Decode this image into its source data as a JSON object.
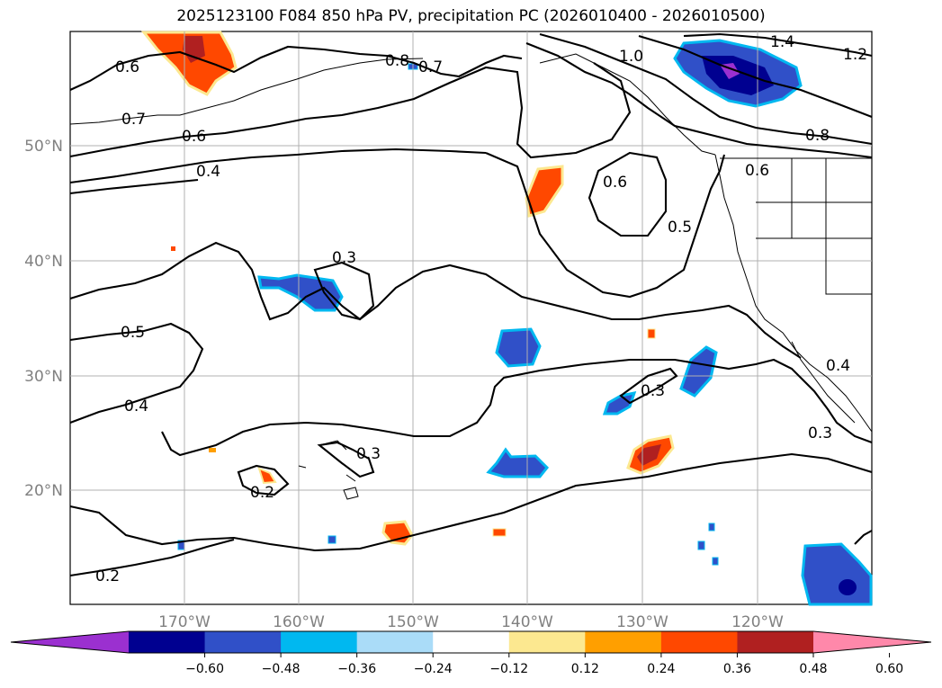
{
  "title": "2025123100 F084 850 hPa PV, precipitation PC (2026010400 - 2026010500)",
  "map": {
    "lat_labels": [
      "50°N",
      "40°N",
      "30°N",
      "20°N"
    ],
    "lon_labels": [
      "170°W",
      "160°W",
      "150°W",
      "140°W",
      "130°W",
      "120°W"
    ],
    "contour_labels": [
      "0.6",
      "0.7",
      "0.6",
      "0.4",
      "0.8",
      "0.7",
      "1.0",
      "1.4",
      "1.2",
      "0.8",
      "0.6",
      "0.6",
      "0.5",
      "0.3",
      "0.5",
      "0.4",
      "0.3",
      "0.3",
      "0.2",
      "0.2",
      "0.3",
      "0.4"
    ],
    "grid_lines": true
  },
  "colorbar": {
    "ticks": [
      "−0.60",
      "−0.48",
      "−0.36",
      "−0.24",
      "−0.12",
      "0.12",
      "0.24",
      "0.36",
      "0.48",
      "0.60"
    ],
    "colors": [
      "#9b30d0",
      "#000090",
      "#3050c8",
      "#00b8f0",
      "#aadcf8",
      "#ffffff",
      "#fce890",
      "#ff9f00",
      "#ff4800",
      "#b02020",
      "#ff88aa"
    ],
    "extend": "both"
  },
  "style": {
    "grid_color": "#b0b0b0",
    "label_color": "#808080",
    "contour_color": "#000000"
  }
}
